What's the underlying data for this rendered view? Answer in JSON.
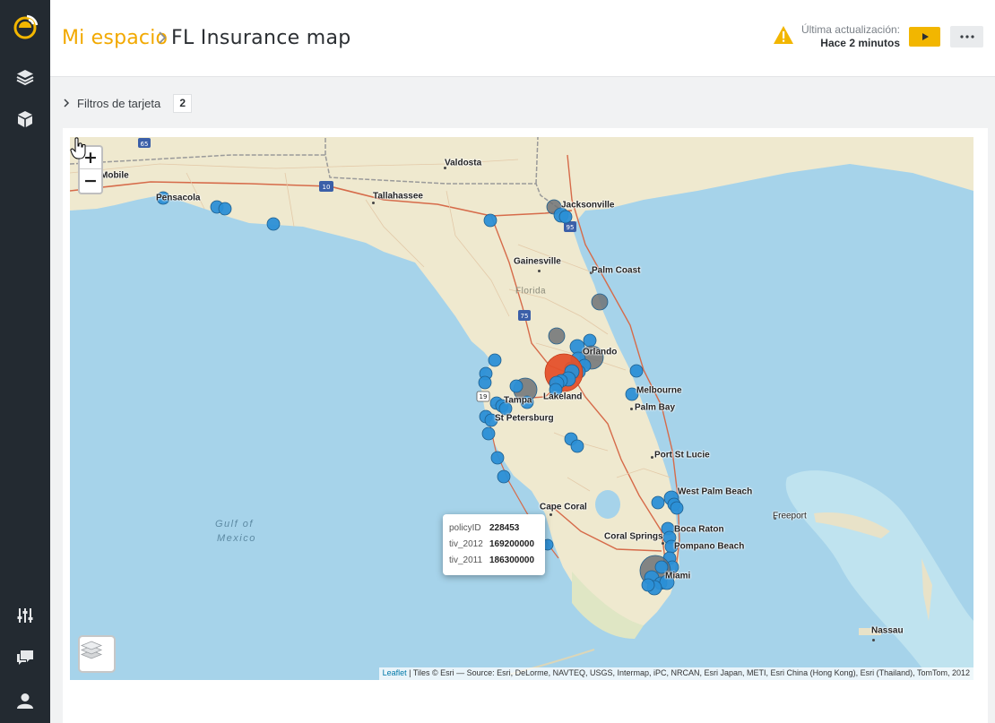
{
  "sidebar": {
    "items": [
      {
        "icon": "logo-icon"
      },
      {
        "icon": "layers-icon"
      },
      {
        "icon": "cube-icon"
      },
      {
        "icon": "sliders-icon"
      },
      {
        "icon": "chat-icon"
      },
      {
        "icon": "user-icon"
      }
    ]
  },
  "header": {
    "breadcrumb_root": "Mi espacio",
    "breadcrumb_separator": "›",
    "title": "FL Insurance map",
    "update_label": "Última actualización:",
    "update_value": "Hace 2 minutos",
    "warning_icon": "warning-icon",
    "play_icon": "play-icon",
    "more_icon": "more-icon"
  },
  "filters": {
    "label": "Filtros de tarjeta",
    "count": "2"
  },
  "map": {
    "zoom_in": "+",
    "zoom_out": "−",
    "attribution_link": "Leaflet",
    "attribution_text": " | Tiles © Esri — Source: Esri, DeLorme, NAVTEQ, USGS, Intermap, iPC, NRCAN, Esri Japan, METI, Esri China (Hong Kong), Esri (Thailand), TomTom, 2012",
    "places": {
      "mobile": "Mobile",
      "pensacola": "Pensacola",
      "valdosta": "Valdosta",
      "tallahassee": "Tallahassee",
      "jacksonville": "Jacksonville",
      "gainesville": "Gainesville",
      "palm_coast": "Palm Coast",
      "florida": "Florida",
      "orlando": "Orlando",
      "lakeland": "Lakeland",
      "tampa": "Tampa",
      "st_petersburg": "St Petersburg",
      "melbourne": "Melbourne",
      "palm_bay": "Palm Bay",
      "port_st_lucie": "Port St Lucie",
      "west_palm_beach": "West Palm Beach",
      "cape_coral": "Cape Coral",
      "boca_raton": "Boca Raton",
      "coral_springs": "Coral Springs",
      "pompano_beach": "Pompano Beach",
      "miami": "Miami",
      "freeport": "Freeport",
      "nassau": "Nassau",
      "gulf_line1": "Gulf of",
      "gulf_line2": "Mexico"
    },
    "shields": [
      "65",
      "10",
      "75",
      "95",
      "19"
    ],
    "marker_colors": {
      "small": "#2b8fd6",
      "medium": "#6f7276",
      "large": "#e4512b"
    },
    "popup": {
      "rows": [
        {
          "key": "policyID",
          "value": "228453"
        },
        {
          "key": "tiv_2012",
          "value": "169200000"
        },
        {
          "key": "tiv_2011",
          "value": "186300000"
        }
      ]
    }
  }
}
